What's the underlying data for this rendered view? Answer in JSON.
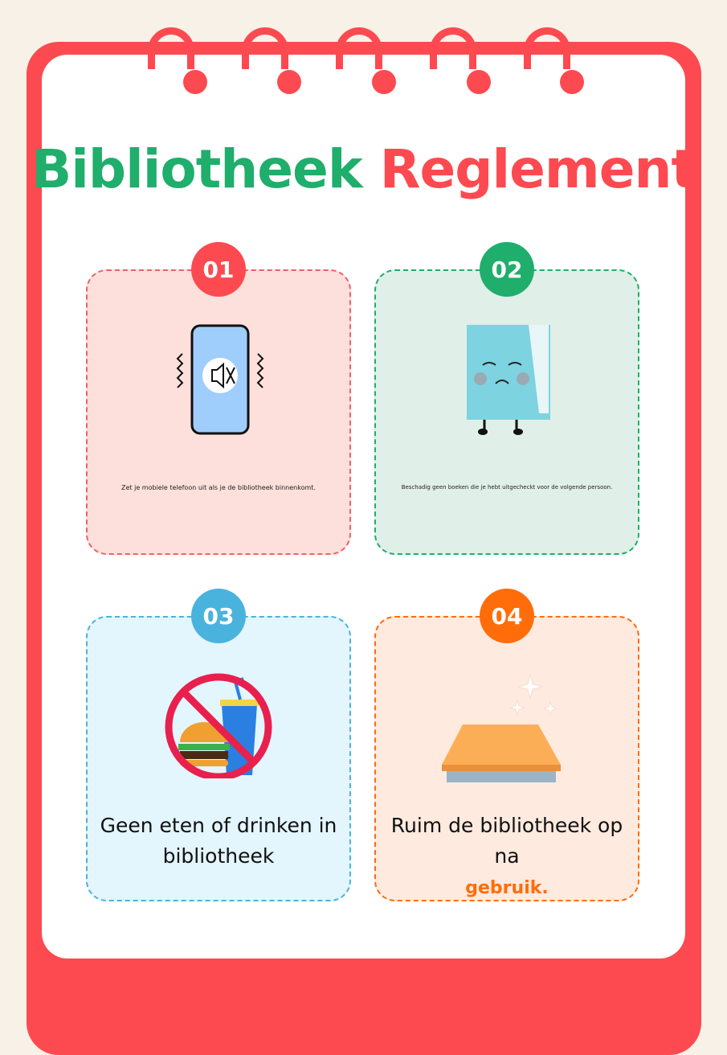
{
  "title": {
    "part1": "Bibliotheek",
    "part2": "Reglement",
    "color1": "#1fae6b",
    "color2": "#fc4a50"
  },
  "rules": [
    {
      "number": "01",
      "text": "Zet je mobiele telefoon uit als je de bibliotheek binnenkomt.",
      "icon": "silent-phone-icon",
      "color": "#fc4a50"
    },
    {
      "number": "02",
      "text": "Beschadig geen boeken die je hebt uitgecheckt voor de volgende persoon.",
      "icon": "sad-book-icon",
      "color": "#1fae6b"
    },
    {
      "number": "03",
      "text": "Geen eten of drinken in bibliotheek",
      "icon": "no-food-icon",
      "color": "#4ab3dd"
    },
    {
      "number": "04",
      "text": "Ruim de bibliotheek op na",
      "highlight": "gebruik.",
      "icon": "clean-table-icon",
      "color": "#ff6d0a"
    }
  ]
}
